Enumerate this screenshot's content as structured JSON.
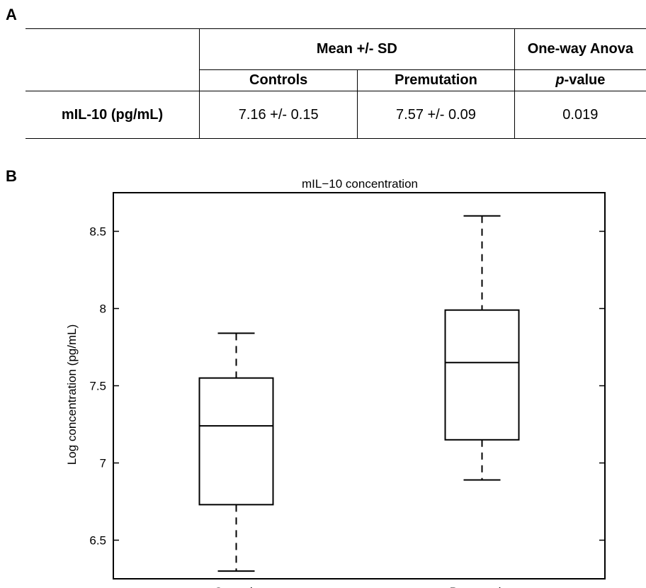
{
  "panels": {
    "a": "A",
    "b": "B"
  },
  "table": {
    "group_header_mean": "Mean +/- SD",
    "group_header_test": "One-way Anova",
    "col_controls": "Controls",
    "col_premutation": "Premutation",
    "col_p_prefix": "p",
    "col_p_suffix": "-value",
    "row_label": "mIL-10 (pg/mL)",
    "val_controls": "7.16 +/- 0.15",
    "val_premutation": "7.57 +/- 0.09",
    "val_p": "0.019"
  },
  "chart_data": {
    "type": "box",
    "title": "mIL−10 concentration",
    "ylabel": "Log concentration (pg/mL)",
    "xlabel": "",
    "ylim": [
      6.25,
      8.75
    ],
    "yticks": [
      6.5,
      7,
      7.5,
      8,
      8.5
    ],
    "ytick_labels": [
      "6.5",
      "7",
      "7.5",
      "8",
      "8.5"
    ],
    "categories": [
      "Controls",
      "Premutation"
    ],
    "boxes": [
      {
        "name": "Controls",
        "whisker_low": 6.3,
        "q1": 6.73,
        "median": 7.24,
        "q3": 7.55,
        "whisker_high": 7.84
      },
      {
        "name": "Premutation",
        "whisker_low": 6.89,
        "q1": 7.15,
        "median": 7.65,
        "q3": 7.99,
        "whisker_high": 8.6
      }
    ]
  }
}
